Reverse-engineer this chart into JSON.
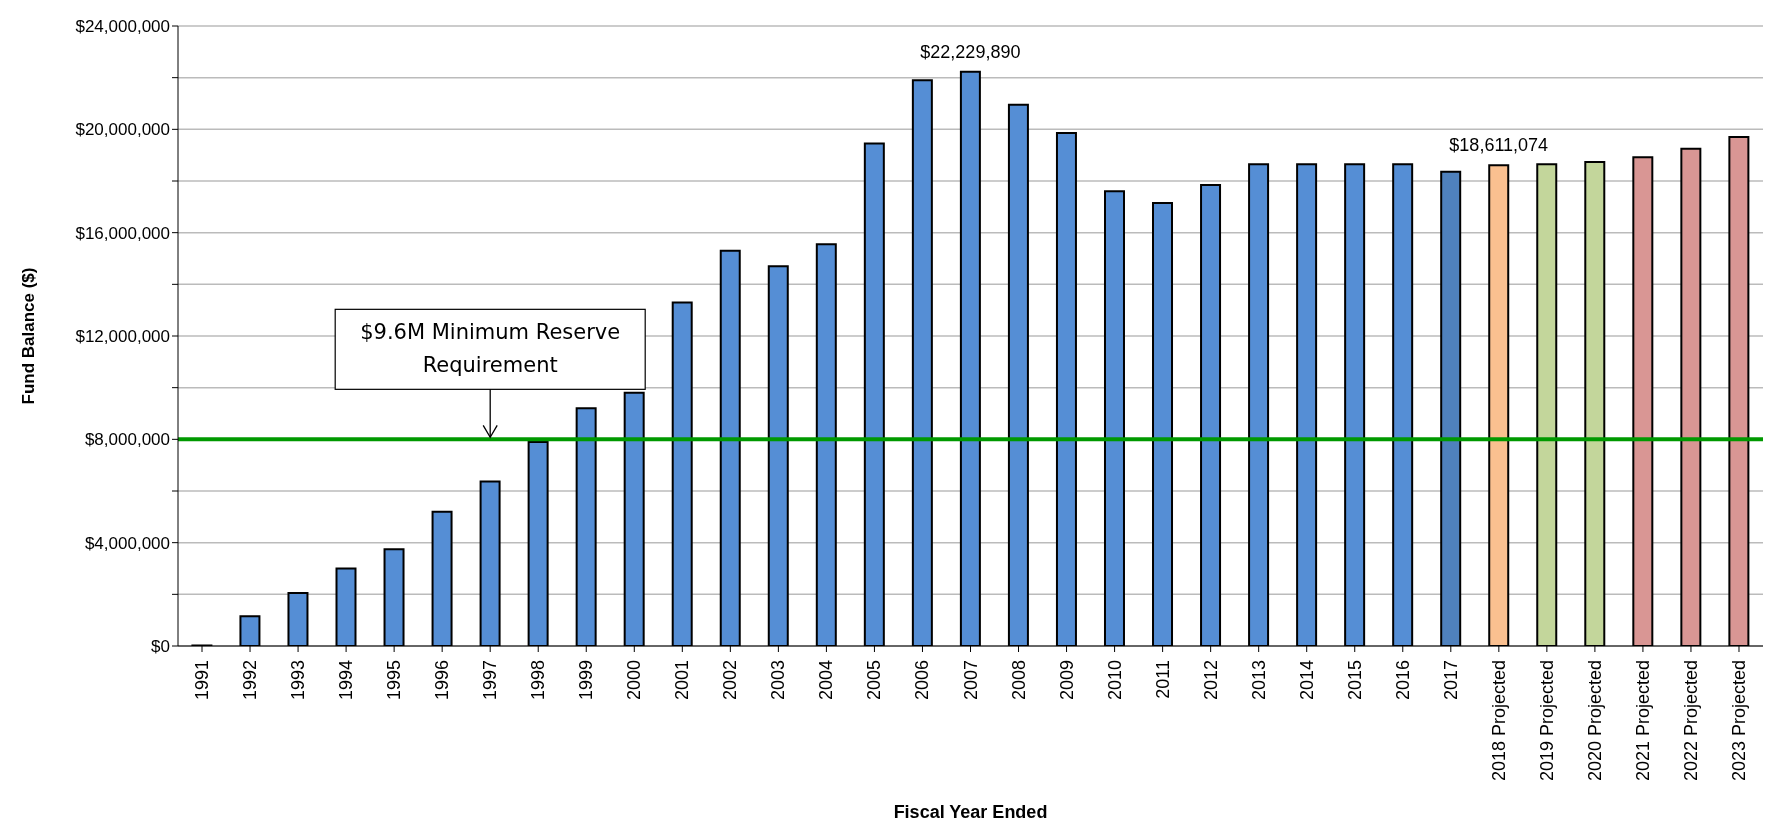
{
  "chart_data": {
    "type": "bar",
    "xlabel": "Fiscal Year Ended",
    "ylabel": "Fund Balance ($)",
    "categories": [
      "1991",
      "1992",
      "1993",
      "1994",
      "1995",
      "1996",
      "1997",
      "1998",
      "1999",
      "2000",
      "2001",
      "2002",
      "2003",
      "2004",
      "2005",
      "2006",
      "2007",
      "2008",
      "2009",
      "2010",
      "2011",
      "2012",
      "2013",
      "2014",
      "2015",
      "2016",
      "2017",
      "2018 Projected",
      "2019 Projected",
      "2020 Projected",
      "2021 Projected",
      "2022 Projected",
      "2023 Projected"
    ],
    "values": [
      20000,
      1150000,
      2050000,
      3000000,
      3750000,
      5200000,
      6370000,
      7900000,
      9200000,
      9800000,
      13300000,
      15300000,
      14700000,
      15550000,
      19450000,
      21900000,
      22229890,
      20950000,
      19860000,
      17600000,
      17150000,
      17850000,
      18650000,
      18650000,
      18650000,
      18650000,
      18360000,
      18611074,
      18650000,
      18740000,
      18920000,
      19250000,
      19700000
    ],
    "colors": [
      "#558ed5",
      "#558ed5",
      "#558ed5",
      "#558ed5",
      "#558ed5",
      "#558ed5",
      "#558ed5",
      "#558ed5",
      "#558ed5",
      "#558ed5",
      "#558ed5",
      "#558ed5",
      "#558ed5",
      "#558ed5",
      "#558ed5",
      "#558ed5",
      "#558ed5",
      "#558ed5",
      "#558ed5",
      "#558ed5",
      "#558ed5",
      "#558ed5",
      "#558ed5",
      "#558ed5",
      "#558ed5",
      "#558ed5",
      "#4f81bd",
      "#fac090",
      "#c3d69b",
      "#c3d69b",
      "#d99694",
      "#d99694",
      "#d99694"
    ],
    "value_labels": [
      null,
      null,
      null,
      null,
      null,
      null,
      null,
      null,
      null,
      null,
      null,
      null,
      null,
      null,
      null,
      null,
      "$22,229,890",
      null,
      null,
      null,
      null,
      null,
      null,
      null,
      null,
      null,
      null,
      "$18,611,074",
      null,
      null,
      null,
      null,
      null
    ],
    "ylim": [
      0,
      24000000
    ],
    "yticks": [
      {
        "value": 0,
        "label": "$0"
      },
      {
        "value": 2000000,
        "label": null
      },
      {
        "value": 4000000,
        "label": "$4,000,000"
      },
      {
        "value": 6000000,
        "label": null
      },
      {
        "value": 8000000,
        "label": "$8,000,000"
      },
      {
        "value": 10000000,
        "label": null
      },
      {
        "value": 12000000,
        "label": "$12,000,000"
      },
      {
        "value": 14000000,
        "label": null
      },
      {
        "value": 16000000,
        "label": "$16,000,000"
      },
      {
        "value": 18000000,
        "label": null
      },
      {
        "value": 20000000,
        "label": "$20,000,000"
      },
      {
        "value": 22000000,
        "label": null
      },
      {
        "value": 24000000,
        "label": "$24,000,000"
      }
    ],
    "grid": "y",
    "ref_lines": [
      {
        "axis": "y",
        "value": 8000000,
        "color": "#009900"
      }
    ],
    "annotations": [
      {
        "text": "$9.6M Minimum Reserve Requirement",
        "x": "1997",
        "y": 8000000
      }
    ]
  }
}
